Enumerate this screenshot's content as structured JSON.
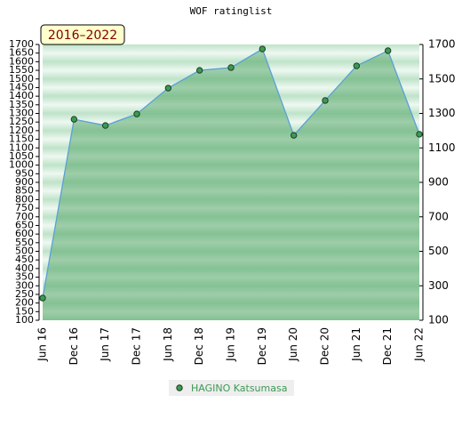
{
  "chart_data": {
    "type": "area",
    "title": "WOF ratinglist",
    "period_label": "2016–2022",
    "categories": [
      "Jun 16",
      "Dec 16",
      "Jun 17",
      "Dec 17",
      "Jun 18",
      "Dec 18",
      "Jun 19",
      "Dec 19",
      "Jun 20",
      "Dec 20",
      "Jun 21",
      "Dec 21",
      "Jun 22"
    ],
    "series": [
      {
        "name": "HAGINO Katsumasa",
        "color": "#3c9a52",
        "line_color": "#5aa0d8",
        "values": [
          229,
          1266,
          1230,
          1297,
          1447,
          1550,
          1566,
          1674,
          1173,
          1375,
          1576,
          1664,
          1179
        ]
      }
    ],
    "ylim": [
      100,
      1700
    ],
    "yticks": [
      100,
      150,
      200,
      250,
      300,
      350,
      400,
      450,
      500,
      550,
      600,
      650,
      700,
      750,
      800,
      850,
      900,
      950,
      1000,
      1050,
      1100,
      1150,
      1200,
      1250,
      1300,
      1350,
      1400,
      1450,
      1500,
      1550,
      1600,
      1650,
      1700
    ],
    "y2lim": [
      100,
      1700
    ],
    "y2ticks": [
      100,
      300,
      500,
      700,
      900,
      1100,
      1300,
      1500,
      1700
    ]
  }
}
